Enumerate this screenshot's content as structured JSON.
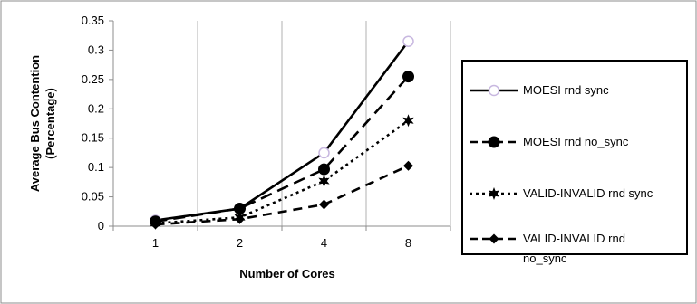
{
  "chart_data": {
    "type": "line",
    "categories": [
      "1",
      "2",
      "4",
      "8"
    ],
    "xlabel": "Number of Cores",
    "ylabel": "Average Bus Contention (Percentage)",
    "ylabel_lines": [
      "Average Bus Contention",
      "(Percentage)"
    ],
    "ylim": [
      0,
      0.35
    ],
    "yticks": [
      0,
      0.05,
      0.1,
      0.15,
      0.2,
      0.25,
      0.3,
      0.35
    ],
    "ytick_labels": [
      "0",
      "0.05",
      "0.1",
      "0.15",
      "0.2",
      "0.25",
      "0.3",
      "0.35"
    ],
    "grid": "vertical",
    "legend": "right",
    "series": [
      {
        "name": "MOESI rnd sync",
        "legend_lines": [
          "MOESI rnd sync"
        ],
        "values": [
          0.01,
          0.03,
          0.125,
          0.315
        ],
        "line_style": "solid",
        "marker": "open-circle",
        "marker_color": "#c8b8e0",
        "color": "#000000"
      },
      {
        "name": "MOESI rnd no_sync",
        "legend_lines": [
          "MOESI rnd no_sync"
        ],
        "values": [
          0.008,
          0.03,
          0.097,
          0.255
        ],
        "line_style": "long-dash",
        "marker": "filled-circle",
        "color": "#000000"
      },
      {
        "name": "VALID-INVALID rnd sync",
        "legend_lines": [
          "VALID-INVALID rnd sync"
        ],
        "values": [
          0.005,
          0.015,
          0.077,
          0.18
        ],
        "line_style": "dotted",
        "marker": "star",
        "color": "#000000"
      },
      {
        "name": "VALID-INVALID rnd no_sync",
        "legend_lines": [
          "VALID-INVALID rnd",
          "no_sync"
        ],
        "values": [
          0.003,
          0.012,
          0.037,
          0.103
        ],
        "line_style": "dash",
        "marker": "diamond",
        "color": "#000000"
      }
    ]
  }
}
